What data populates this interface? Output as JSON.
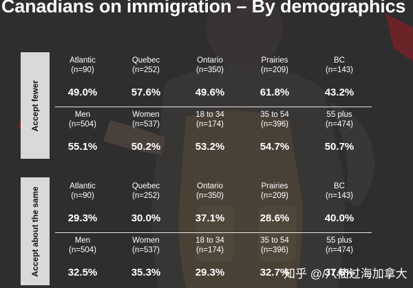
{
  "title": "Canadians on immigration – By demographics",
  "watermark": "知乎 @/八仙过海加拿大",
  "sections": [
    {
      "label": "Accept fewer",
      "rows": [
        {
          "cells": [
            {
              "name": "Atlantic",
              "n": "(n=90)",
              "value": "49.0%"
            },
            {
              "name": "Quebec",
              "n": "(n=252)",
              "value": "57.6%"
            },
            {
              "name": "Ontario",
              "n": "(n=350)",
              "value": "49.6%"
            },
            {
              "name": "Prairies",
              "n": "(n=209)",
              "value": "61.8%"
            },
            {
              "name": "BC",
              "n": "(n=143)",
              "value": "43.2%"
            }
          ]
        },
        {
          "cells": [
            {
              "name": "Men",
              "n": "(n=504)",
              "value": "55.1%"
            },
            {
              "name": "Women",
              "n": "(n=537)",
              "value": "50.2%"
            },
            {
              "name": "18 to 34",
              "n": "(n=174)",
              "value": "53.2%"
            },
            {
              "name": "35 to 54",
              "n": "(n=396)",
              "value": "54.7%"
            },
            {
              "name": "55 plus",
              "n": "(n=474)",
              "value": "50.7%"
            }
          ]
        }
      ]
    },
    {
      "label": "Accept about the same",
      "rows": [
        {
          "cells": [
            {
              "name": "Atlantic",
              "n": "(n=90)",
              "value": "29.3%"
            },
            {
              "name": "Quebec",
              "n": "(n=252)",
              "value": "30.0%"
            },
            {
              "name": "Ontario",
              "n": "(n=350)",
              "value": "37.1%"
            },
            {
              "name": "Prairies",
              "n": "(n=209)",
              "value": "28.6%"
            },
            {
              "name": "BC",
              "n": "(n=143)",
              "value": "40.0%"
            }
          ]
        },
        {
          "cells": [
            {
              "name": "Men",
              "n": "(n=504)",
              "value": "32.5%"
            },
            {
              "name": "Women",
              "n": "(n=537)",
              "value": "35.3%"
            },
            {
              "name": "18 to 34",
              "n": "(n=174)",
              "value": "29.3%"
            },
            {
              "name": "35 to 54",
              "n": "(n=396)",
              "value": "32.7%"
            },
            {
              "name": "55 plus",
              "n": "(n=474)",
              "value": "37.6%"
            }
          ]
        }
      ]
    }
  ],
  "colors": {
    "background": "#3b3b3b",
    "label_box": "#d9d9d9",
    "accent_red": "#b3242b",
    "text": "#ffffff"
  }
}
